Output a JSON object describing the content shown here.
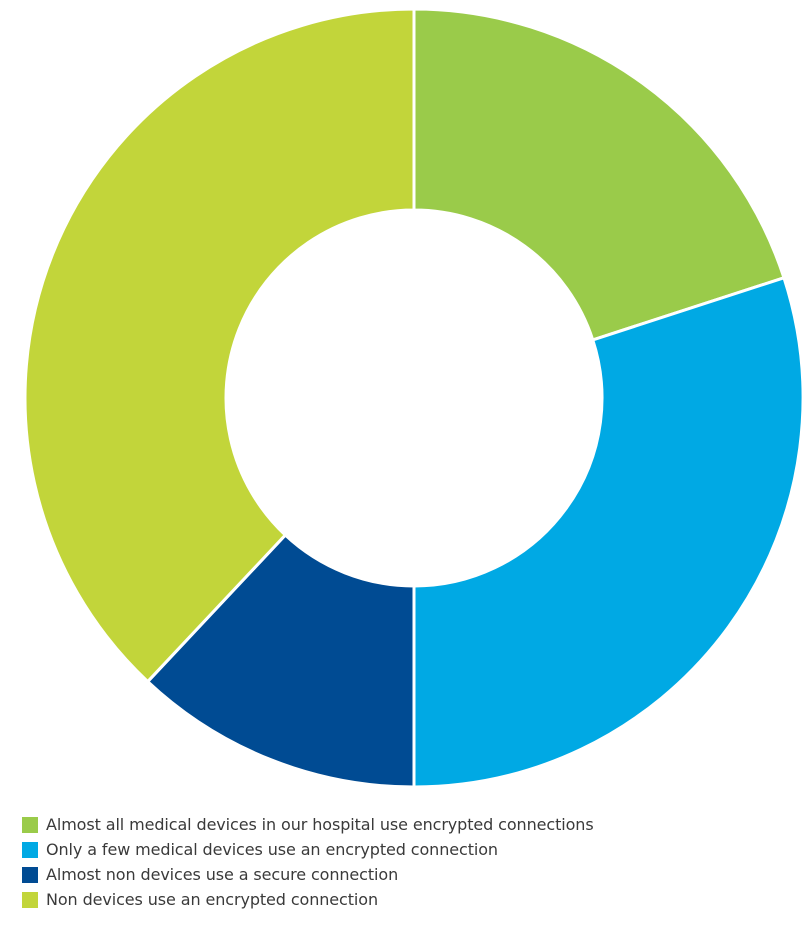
{
  "chart_data": {
    "type": "pie",
    "variant": "donut",
    "legend_position": "bottom-left",
    "slices": [
      {
        "label": "Almost all medical devices in our hospital use encrypted connections",
        "value": 20,
        "color": "#9acb4a"
      },
      {
        "label": "Only a few medical devices use an encrypted connection",
        "value": 30,
        "color": "#00a9e4"
      },
      {
        "label": "Almost non devices use a secure connection",
        "value": 12,
        "color": "#004b93"
      },
      {
        "label": "Non devices use an encrypted connection",
        "value": 38,
        "color": "#c2d53a"
      }
    ]
  }
}
